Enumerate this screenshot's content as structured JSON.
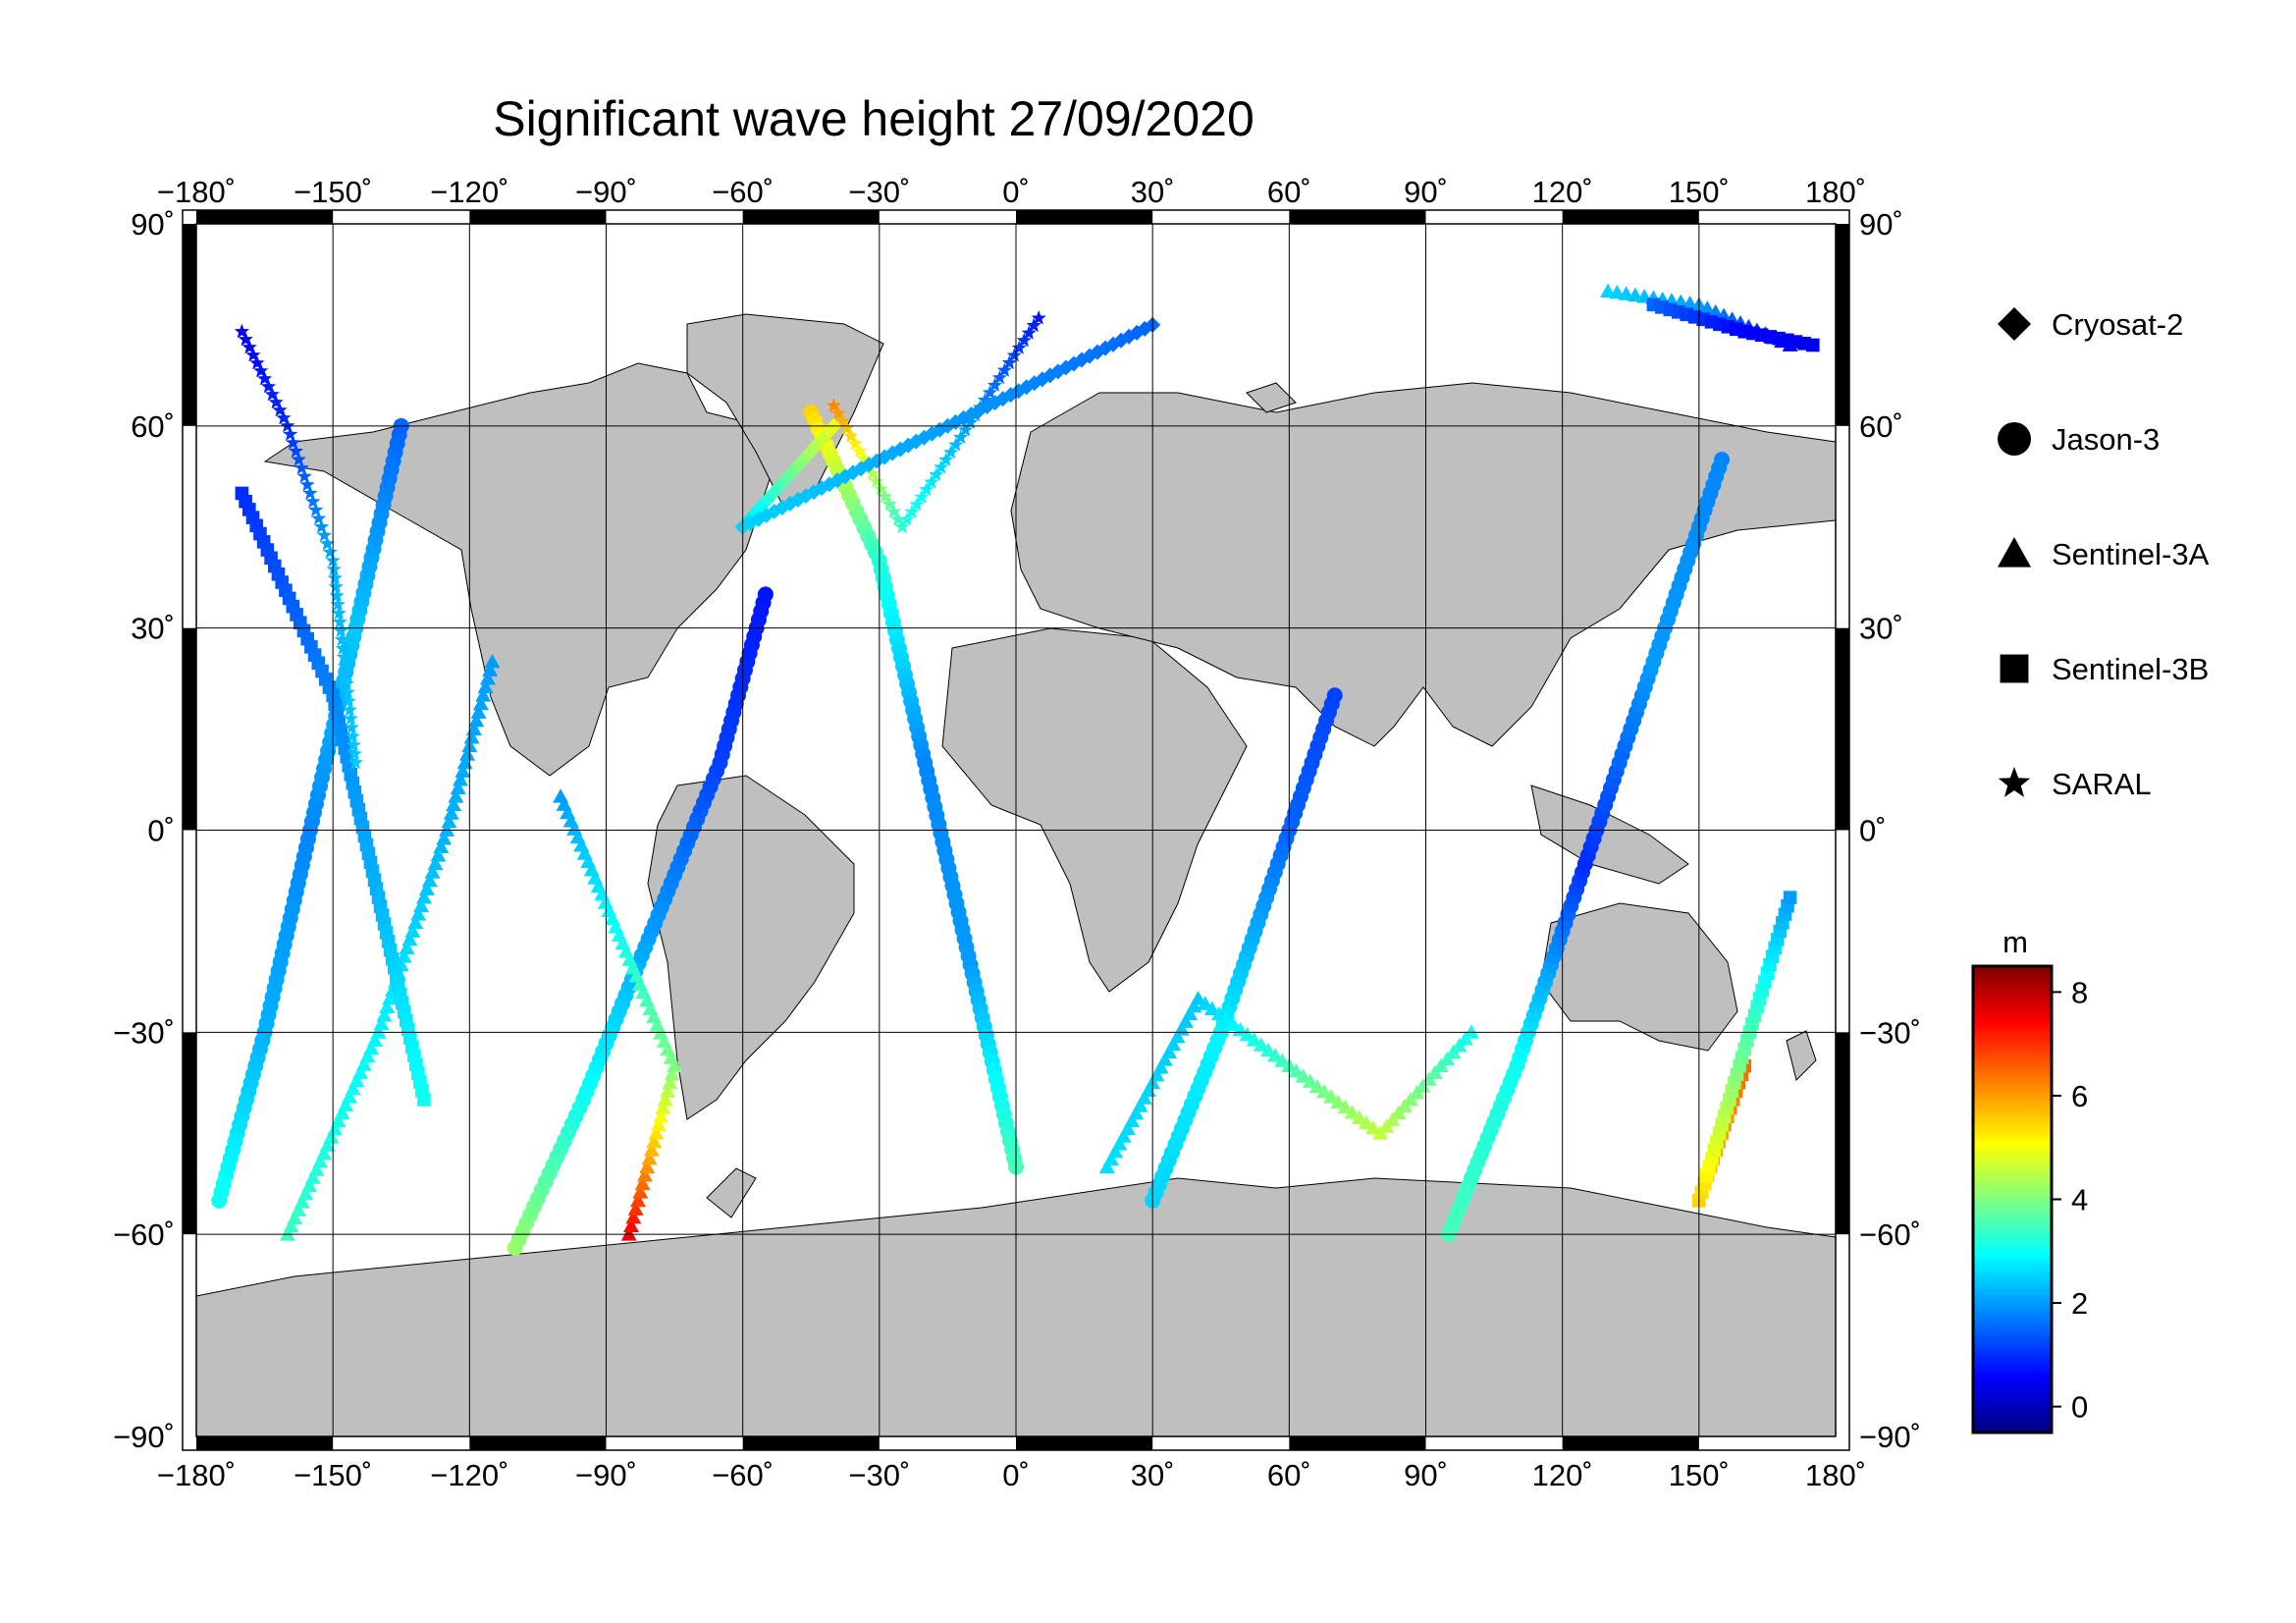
{
  "title": "Significant wave height 27/09/2020",
  "map": {
    "projection": "equirectangular",
    "lon_range": [
      -180,
      180
    ],
    "lat_range": [
      -90,
      90
    ],
    "lon_ticks": [
      "−180˚",
      "−150˚",
      "−120˚",
      "−90˚",
      "−60˚",
      "−30˚",
      "0˚",
      "30˚",
      "60˚",
      "90˚",
      "120˚",
      "150˚",
      "180˚"
    ],
    "lat_ticks_left": [
      "90˚",
      "60˚",
      "30˚",
      "0˚",
      "−30˚",
      "−60˚",
      "−90˚"
    ],
    "lat_ticks_right": [
      "90˚",
      "60˚",
      "30˚",
      "0˚",
      "−30˚",
      "−60˚",
      "−90˚"
    ],
    "land_color": "#bfbfbf",
    "ocean_color": "#ffffff",
    "grid": true
  },
  "legend": {
    "items": [
      {
        "label": "Cryosat-2",
        "symbol": "diamond"
      },
      {
        "label": "Jason-3",
        "symbol": "circle"
      },
      {
        "label": "Sentinel-3A",
        "symbol": "triangle"
      },
      {
        "label": "Sentinel-3B",
        "symbol": "square"
      },
      {
        "label": "SARAL",
        "symbol": "star"
      }
    ]
  },
  "colorbar": {
    "unit": "m",
    "ticks": [
      "8",
      "6",
      "4",
      "2",
      "0"
    ],
    "range": [
      -0.5,
      8.5
    ],
    "colors": [
      "#00007f",
      "#0000ff",
      "#0080ff",
      "#00ffff",
      "#80ff80",
      "#ffff00",
      "#ff8000",
      "#ff0000",
      "#7f0000"
    ]
  },
  "chart_data": {
    "type": "scatter",
    "title": "Significant wave height 27/09/2020",
    "xlabel": "",
    "ylabel": "",
    "xlim": [
      -180,
      180
    ],
    "ylim": [
      -90,
      90
    ],
    "color_variable": "significant wave height (m)",
    "tracks": [
      {
        "name": "Jason-3",
        "points": [
          {
            "lon": -175,
            "lat": -55,
            "swh": 3.0
          },
          {
            "lon": -165,
            "lat": -30,
            "swh": 2.2
          },
          {
            "lon": -155,
            "lat": 0,
            "swh": 1.8
          },
          {
            "lon": -145,
            "lat": 30,
            "swh": 2.4
          },
          {
            "lon": -135,
            "lat": 60,
            "swh": 1.5
          }
        ]
      },
      {
        "name": "Jason-3",
        "points": [
          {
            "lon": -110,
            "lat": -62,
            "swh": 4.2
          },
          {
            "lon": -95,
            "lat": -40,
            "swh": 3.0
          },
          {
            "lon": -80,
            "lat": -15,
            "swh": 2.0
          },
          {
            "lon": -65,
            "lat": 10,
            "swh": 1.2
          },
          {
            "lon": -55,
            "lat": 35,
            "swh": 0.8
          }
        ]
      },
      {
        "name": "Jason-3",
        "points": [
          {
            "lon": -45,
            "lat": 62,
            "swh": 5.5
          },
          {
            "lon": -30,
            "lat": 40,
            "swh": 3.2
          },
          {
            "lon": -20,
            "lat": 10,
            "swh": 1.8
          },
          {
            "lon": -10,
            "lat": -20,
            "swh": 2.0
          },
          {
            "lon": 0,
            "lat": -50,
            "swh": 3.5
          }
        ]
      },
      {
        "name": "Jason-3",
        "points": [
          {
            "lon": 30,
            "lat": -55,
            "swh": 2.5
          },
          {
            "lon": 45,
            "lat": -30,
            "swh": 2.8
          },
          {
            "lon": 60,
            "lat": 0,
            "swh": 1.5
          },
          {
            "lon": 70,
            "lat": 20,
            "swh": 1.2
          }
        ]
      },
      {
        "name": "Jason-3",
        "points": [
          {
            "lon": 95,
            "lat": -60,
            "swh": 3.5
          },
          {
            "lon": 110,
            "lat": -35,
            "swh": 3.0
          },
          {
            "lon": 125,
            "lat": -5,
            "swh": 1.0
          },
          {
            "lon": 140,
            "lat": 25,
            "swh": 2.0
          },
          {
            "lon": 155,
            "lat": 55,
            "swh": 1.8
          }
        ]
      },
      {
        "name": "Sentinel-3A",
        "points": [
          {
            "lon": -160,
            "lat": -60,
            "swh": 3.4
          },
          {
            "lon": -140,
            "lat": -30,
            "swh": 2.8
          },
          {
            "lon": -125,
            "lat": 0,
            "swh": 2.2
          },
          {
            "lon": -115,
            "lat": 25,
            "swh": 2.0
          }
        ]
      },
      {
        "name": "Sentinel-3A",
        "points": [
          {
            "lon": -85,
            "lat": -60,
            "swh": 7.5
          },
          {
            "lon": -75,
            "lat": -35,
            "swh": 4.0
          },
          {
            "lon": -100,
            "lat": 5,
            "swh": 2.0
          }
        ]
      },
      {
        "name": "Sentinel-3A",
        "points": [
          {
            "lon": 20,
            "lat": -50,
            "swh": 2.6
          },
          {
            "lon": 40,
            "lat": -25,
            "swh": 2.4
          },
          {
            "lon": 80,
            "lat": -45,
            "swh": 4.6
          },
          {
            "lon": 100,
            "lat": -30,
            "swh": 3.0
          }
        ]
      },
      {
        "name": "Sentinel-3A",
        "points": [
          {
            "lon": 130,
            "lat": 80,
            "swh": 2.5
          },
          {
            "lon": 150,
            "lat": 78,
            "swh": 2.0
          },
          {
            "lon": 170,
            "lat": 72,
            "swh": 0.5
          }
        ]
      },
      {
        "name": "Sentinel-3B",
        "points": [
          {
            "lon": -170,
            "lat": 50,
            "swh": 1.0
          },
          {
            "lon": -150,
            "lat": 20,
            "swh": 1.8
          },
          {
            "lon": -140,
            "lat": -10,
            "swh": 2.2
          },
          {
            "lon": -130,
            "lat": -40,
            "swh": 3.0
          }
        ]
      },
      {
        "name": "Sentinel-3B",
        "points": [
          {
            "lon": 140,
            "lat": 78,
            "swh": 1.5
          },
          {
            "lon": 160,
            "lat": 74,
            "swh": 0.6
          },
          {
            "lon": 175,
            "lat": 72,
            "swh": 0.5
          }
        ]
      },
      {
        "name": "Sentinel-3B",
        "points": [
          {
            "lon": 160,
            "lat": -35,
            "swh": 6.5
          },
          {
            "lon": 150,
            "lat": -55,
            "swh": 5.5
          },
          {
            "lon": 170,
            "lat": -10,
            "swh": 2.0
          }
        ]
      },
      {
        "name": "SARAL",
        "points": [
          {
            "lon": -170,
            "lat": 74,
            "swh": 0.6
          },
          {
            "lon": -160,
            "lat": 60,
            "swh": 1.0
          },
          {
            "lon": -150,
            "lat": 40,
            "swh": 2.2
          },
          {
            "lon": -145,
            "lat": 10,
            "swh": 2.4
          }
        ]
      },
      {
        "name": "SARAL",
        "points": [
          {
            "lon": -40,
            "lat": 63,
            "swh": 6.2
          },
          {
            "lon": -25,
            "lat": 45,
            "swh": 3.2
          },
          {
            "lon": 5,
            "lat": 76,
            "swh": 0.8
          }
        ]
      },
      {
        "name": "Cryosat-2",
        "points": [
          {
            "lon": -40,
            "lat": 60,
            "swh": 5.0
          },
          {
            "lon": -60,
            "lat": 45,
            "swh": 2.5
          },
          {
            "lon": 30,
            "lat": 75,
            "swh": 1.5
          }
        ]
      }
    ]
  }
}
